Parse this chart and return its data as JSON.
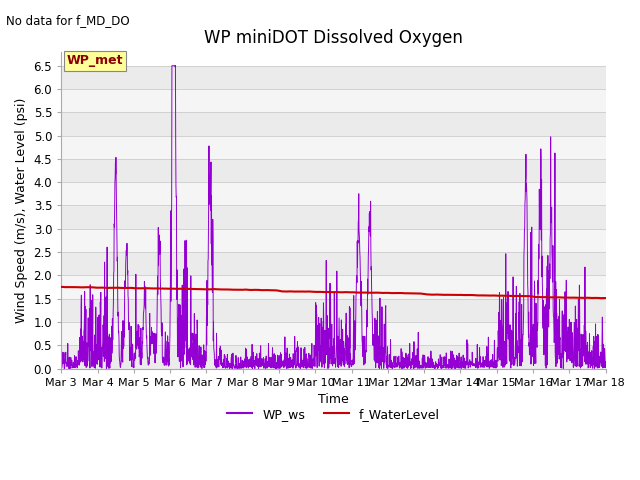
{
  "title": "WP miniDOT Dissolved Oxygen",
  "annotation_text": "No data for f_MD_DO",
  "legend_box_text": "WP_met",
  "xlabel": "Time",
  "ylabel": "Wind Speed (m/s), Water Level (psi)",
  "ylim": [
    0.0,
    6.8
  ],
  "yticks": [
    0.0,
    0.5,
    1.0,
    1.5,
    2.0,
    2.5,
    3.0,
    3.5,
    4.0,
    4.5,
    5.0,
    5.5,
    6.0,
    6.5
  ],
  "xtick_labels": [
    "Mar 3",
    "Mar 4",
    "Mar 5",
    "Mar 6",
    "Mar 7",
    "Mar 8",
    "Mar 9",
    "Mar 10",
    "Mar 11",
    "Mar 12",
    "Mar 13",
    "Mar 14",
    "Mar 15",
    "Mar 16",
    "Mar 17",
    "Mar 18"
  ],
  "wp_ws_color": "#9400D3",
  "f_wl_color": "#CC0000",
  "background_color": "#ffffff",
  "title_fontsize": 12,
  "axis_fontsize": 9,
  "tick_fontsize": 8.5
}
